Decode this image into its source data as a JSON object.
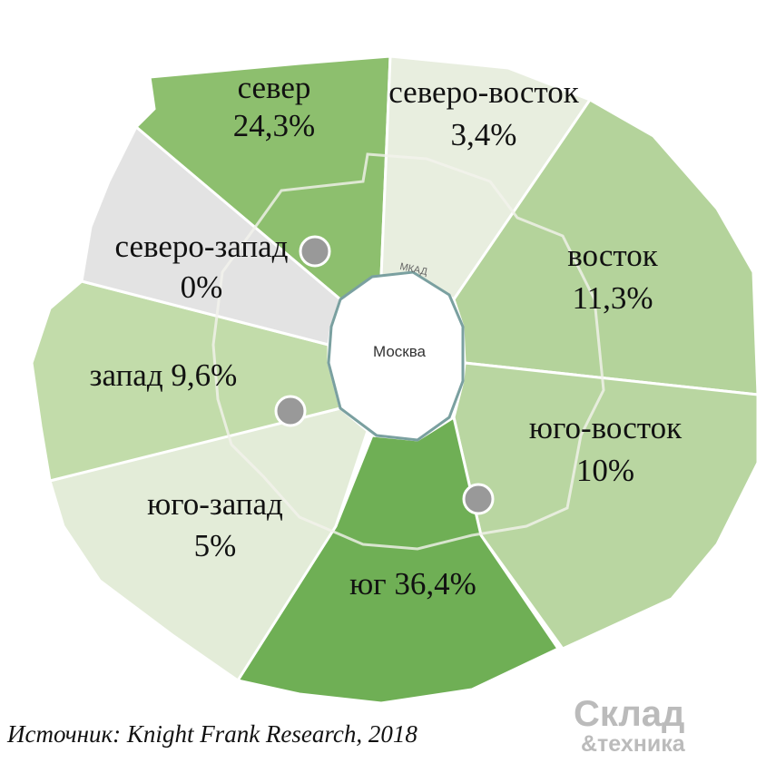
{
  "map": {
    "center": "Москва",
    "road": "МКАД",
    "regions": [
      {
        "name": "север",
        "share": "24,3%"
      },
      {
        "name": "северо-восток",
        "share": "3,4%"
      },
      {
        "name": "восток",
        "share": "11,3%"
      },
      {
        "name": "юго-восток",
        "share": "10%"
      },
      {
        "name": "юг",
        "share": "36,4%"
      },
      {
        "name": "юго-запад",
        "share": "5%"
      },
      {
        "name": "запад",
        "share": "9,6%"
      },
      {
        "name": "северо-запад",
        "share": "0%"
      }
    ]
  },
  "source": "Источник: Knight Frank Research, 2018",
  "logo": {
    "line1": "Склад",
    "line2": "&техника"
  }
}
